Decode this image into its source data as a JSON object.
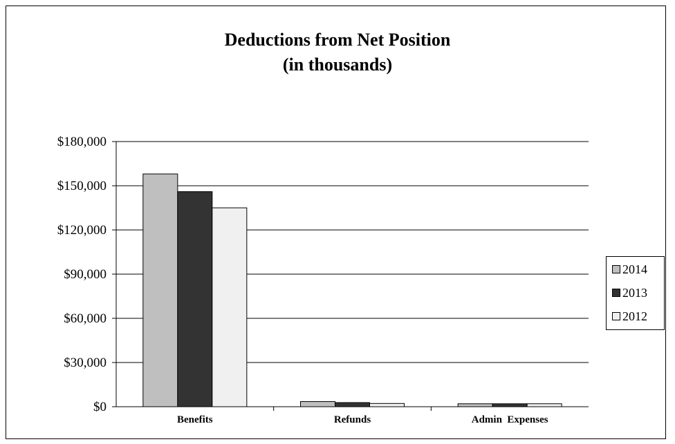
{
  "chart_data": {
    "type": "bar",
    "title": "Deductions from Net Position\n(in thousands)",
    "title_lines": [
      "Deductions from Net Position",
      "(in thousands)"
    ],
    "categories": [
      "Benefits",
      "Refunds",
      "Admin  Expenses"
    ],
    "series": [
      {
        "name": "2014",
        "values": [
          158000,
          3500,
          2000
        ],
        "color": "#bfbfbf"
      },
      {
        "name": "2013",
        "values": [
          146000,
          2800,
          2000
        ],
        "color": "#333333"
      },
      {
        "name": "2012",
        "values": [
          135000,
          2200,
          2000
        ],
        "color": "#f0f0f0"
      }
    ],
    "ylim": [
      0,
      180000
    ],
    "yticks": [
      0,
      30000,
      60000,
      90000,
      120000,
      150000,
      180000
    ],
    "ytick_labels": [
      "$0",
      "$30,000",
      "$60,000",
      "$90,000",
      "$120,000",
      "$150,000",
      "$180,000"
    ],
    "grid": true,
    "legend_position": "right"
  }
}
